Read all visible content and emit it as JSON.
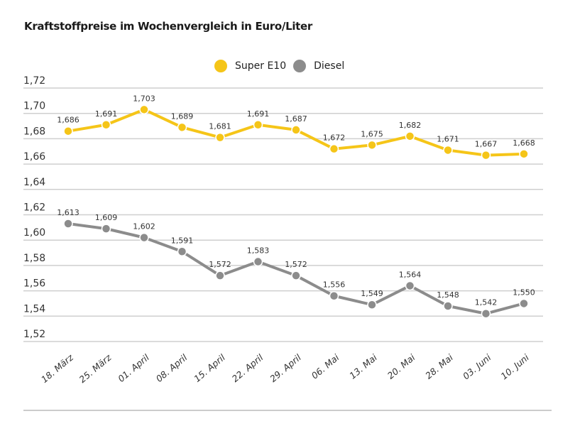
{
  "chart_data": {
    "type": "line",
    "title": "Kraftstoffpreise im Wochenvergleich in Euro/Liter",
    "xlabel": "",
    "ylabel": "",
    "categories": [
      "18. März",
      "25. März",
      "01. April",
      "08. April",
      "15. April",
      "22. April",
      "29. April",
      "06. Mai",
      "13. Mai",
      "20. Mai",
      "28. Mai",
      "03. Juni",
      "10. Juni"
    ],
    "series": [
      {
        "name": "Super E10",
        "color": "#f5c518",
        "values": [
          1.686,
          1.691,
          1.703,
          1.689,
          1.681,
          1.691,
          1.687,
          1.672,
          1.675,
          1.682,
          1.671,
          1.667,
          1.668
        ],
        "labels": [
          "1,686",
          "1,691",
          "1,703",
          "1,689",
          "1,681",
          "1,691",
          "1,687",
          "1,672",
          "1,675",
          "1,682",
          "1,671",
          "1,667",
          "1,668"
        ]
      },
      {
        "name": "Diesel",
        "color": "#8c8c8c",
        "values": [
          1.613,
          1.609,
          1.602,
          1.591,
          1.572,
          1.583,
          1.572,
          1.556,
          1.549,
          1.564,
          1.548,
          1.542,
          1.55
        ],
        "labels": [
          "1,613",
          "1,609",
          "1,602",
          "1,591",
          "1,572",
          "1,583",
          "1,572",
          "1,556",
          "1,549",
          "1,564",
          "1,548",
          "1,542",
          "1,550"
        ]
      }
    ],
    "ylim": [
      1.52,
      1.72
    ],
    "yticks": [
      1.72,
      1.7,
      1.68,
      1.66,
      1.64,
      1.62,
      1.6,
      1.58,
      1.56,
      1.54,
      1.52
    ],
    "ytick_labels": [
      "1,72",
      "1,70",
      "1,68",
      "1,66",
      "1,64",
      "1,62",
      "1,60",
      "1,58",
      "1,56",
      "1,54",
      "1,52"
    ],
    "grid": true,
    "legend": "top-center"
  }
}
